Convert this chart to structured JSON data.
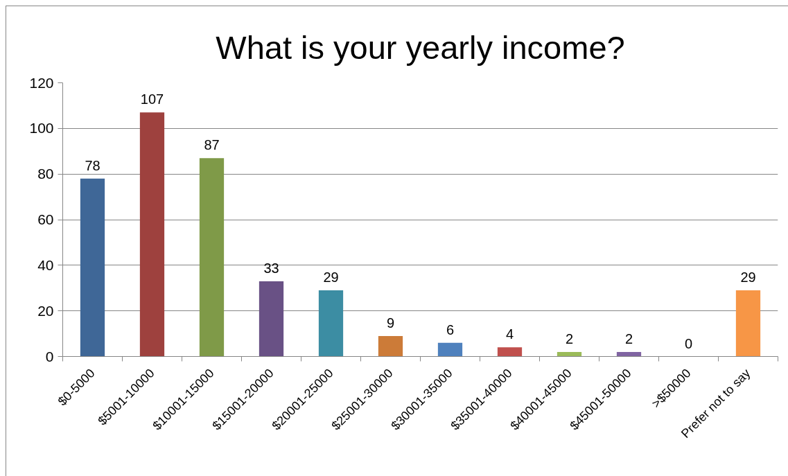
{
  "chart_data": {
    "type": "bar",
    "title": "What is your yearly income?",
    "categories": [
      "$0-5000",
      "$5001-10000",
      "$10001-15000",
      "$15001-20000",
      "$20001-25000",
      "$25001-30000",
      "$30001-35000",
      "$35001-40000",
      "$40001-45000",
      "$45001-50000",
      ">$50000",
      "Prefer not to say"
    ],
    "values": [
      78,
      107,
      87,
      33,
      29,
      9,
      6,
      4,
      2,
      2,
      0,
      29
    ],
    "colors": [
      "#3f6797",
      "#9e413e",
      "#7f9a48",
      "#695185",
      "#3c8da3",
      "#cc7b38",
      "#4f81bd",
      "#c0504d",
      "#9bbb59",
      "#8064a2",
      "#4bacc6",
      "#f79646"
    ],
    "ylim": [
      0,
      120
    ],
    "yticks": [
      0,
      20,
      40,
      60,
      80,
      100,
      120
    ],
    "grid": "y",
    "data_labels": true
  }
}
